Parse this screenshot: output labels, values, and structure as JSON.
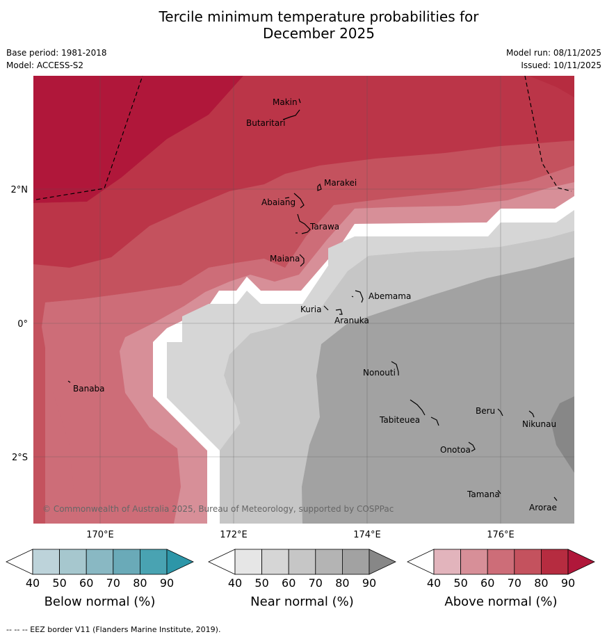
{
  "title": {
    "line1": "Tercile minimum temperature probabilities for",
    "line2": "December 2025"
  },
  "meta": {
    "base_period": "Base period: 1981-2018",
    "model": "Model: ACCESS-S2",
    "model_run": "Model run: 08/11/2025",
    "issued": "Issued: 10/11/2025"
  },
  "axes": {
    "lon_ticks": [
      "170°E",
      "172°E",
      "174°E",
      "176°E"
    ],
    "lat_ticks": [
      "2°N",
      "0°",
      "2°S"
    ]
  },
  "places": [
    "Makin",
    "Butaritari",
    "Marakei",
    "Abaiang",
    "Tarawa",
    "Maiana",
    "Abemama",
    "Kuria",
    "Aranuka",
    "Nonouti",
    "Banaba",
    "Beru",
    "Nikunau",
    "Tabiteuea",
    "Onotoa",
    "Tamana",
    "Arorae"
  ],
  "copyright": "© Commonwealth of Australia 2025, Bureau of Meteorology, supported by COSPPac",
  "legends": [
    {
      "label": "Below normal (%)",
      "ticks": [
        "40",
        "50",
        "60",
        "70",
        "80",
        "90"
      ],
      "colors": [
        "#ffffff",
        "#bdd3da",
        "#a6c7ce",
        "#89b8c3",
        "#6aaab8",
        "#49a3b2",
        "#2d96a8"
      ]
    },
    {
      "label": "Near normal (%)",
      "ticks": [
        "40",
        "50",
        "60",
        "70",
        "80",
        "90"
      ],
      "colors": [
        "#ffffff",
        "#e6e6e6",
        "#d6d6d6",
        "#c6c6c6",
        "#b4b4b4",
        "#a2a2a2",
        "#878787"
      ]
    },
    {
      "label": "Above normal (%)",
      "ticks": [
        "40",
        "50",
        "60",
        "70",
        "80",
        "90"
      ],
      "colors": [
        "#ffffff",
        "#e2b4bc",
        "#d78f98",
        "#cd6d78",
        "#c4525e",
        "#b62c40",
        "#b0173a"
      ]
    }
  ],
  "footer": "-- -- -- EEZ border V11 (Flanders Marine Institute, 2019)."
}
